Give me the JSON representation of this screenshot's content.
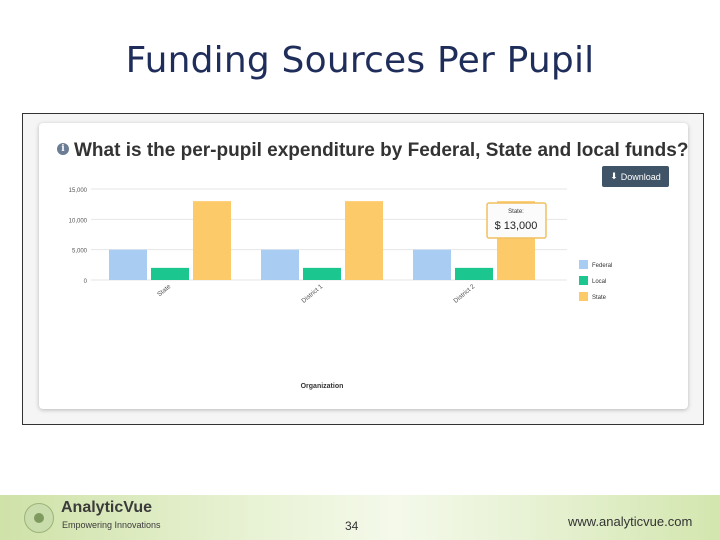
{
  "slide": {
    "title": "Funding Sources Per Pupil"
  },
  "card": {
    "info_icon": "info-circle-icon",
    "question": "What is the per-pupil expenditure by Federal, State and local funds?",
    "download_icon": "download-icon",
    "download_label": "Download"
  },
  "chart_data": {
    "type": "bar",
    "categories": [
      "State",
      "District 1",
      "District 2"
    ],
    "series": [
      {
        "name": "Federal",
        "values": [
          5000,
          5000,
          5000
        ],
        "color": "#a9cdf2"
      },
      {
        "name": "Local",
        "values": [
          2000,
          2000,
          2000
        ],
        "color": "#1cc68f"
      },
      {
        "name": "State",
        "values": [
          13000,
          13000,
          13000
        ],
        "color": "#fdca6a"
      }
    ],
    "y_ticks": [
      "0",
      "5,000",
      "10,000",
      "15,000"
    ],
    "ylim": [
      0,
      15000
    ],
    "xlabel": "Organization",
    "ylabel": "",
    "grid": true,
    "legend_position": "right",
    "tooltip": {
      "series": "State:",
      "value": "$ 13,000"
    }
  },
  "footer": {
    "brand": "AnalyticVue",
    "tagline": "Empowering Innovations",
    "page_number": "34",
    "website": "www.analyticvue.com"
  }
}
